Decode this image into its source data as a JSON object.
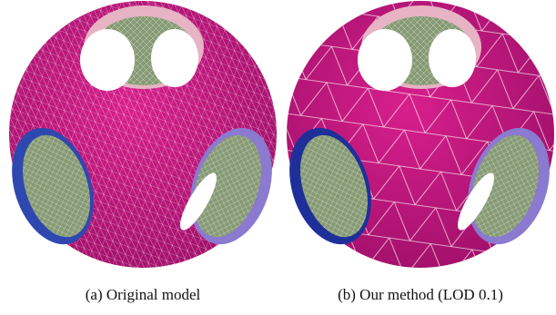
{
  "figure": {
    "panels": [
      {
        "caption": "(a) Original model"
      },
      {
        "caption": "(b) Our method (LOD 0.1)"
      }
    ]
  }
}
